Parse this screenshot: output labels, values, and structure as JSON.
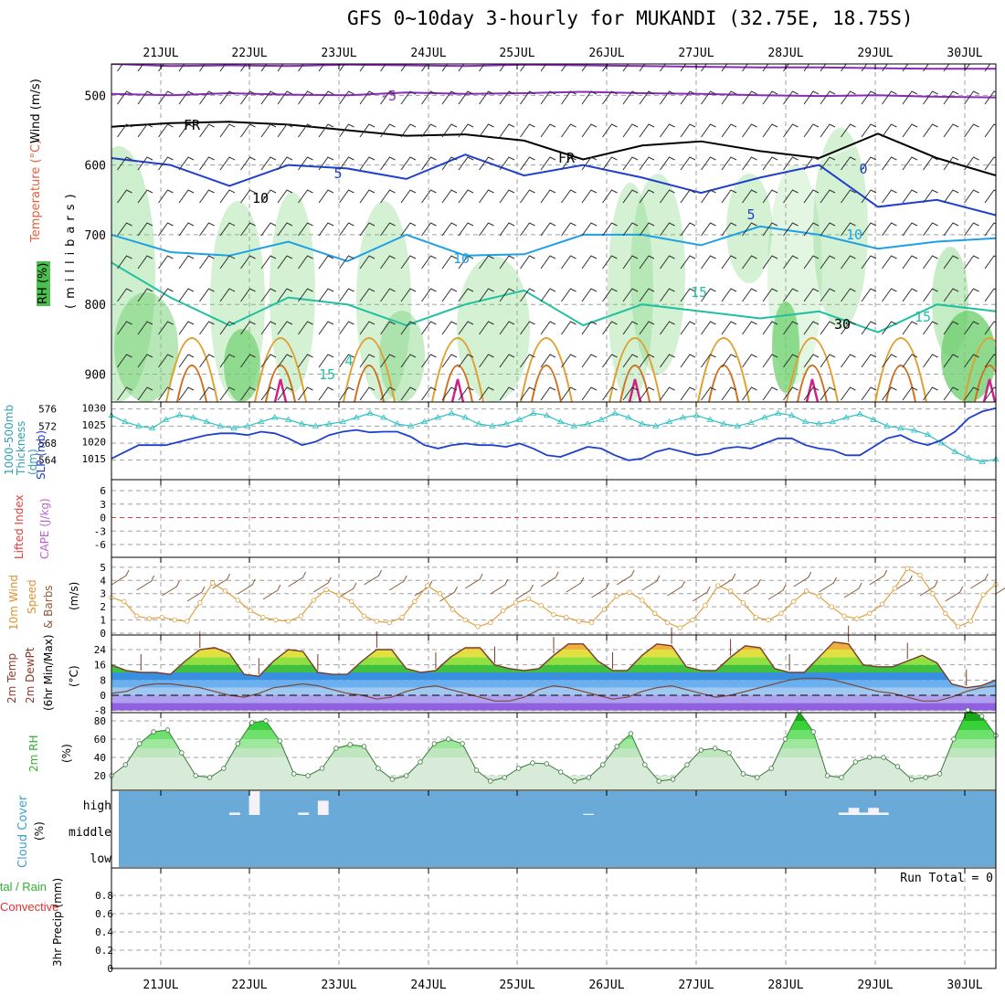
{
  "title": "GFS 0~10day 3-hourly for MUKANDI (32.75E, 18.75S)",
  "colors": {
    "purple": "#8a2bbf",
    "black": "#000000",
    "blue": "#1f3fcc",
    "lightblue": "#1fa0e6",
    "teal": "#20c0a0",
    "orange": "#e0a030",
    "dorange": "#d07020",
    "magenta": "#d0208a",
    "rh_dark": "#70d070",
    "rh_light": "#d8f0d8",
    "thk": "#30c0c0",
    "slp": "#1f3fcc",
    "wind10": "#e0a040",
    "cloud": "#6aaad8",
    "brown": "#8b5a3a"
  },
  "panel_labels": {
    "upper_wind": "Wind (m/s)",
    "upper_temp": "Temperature (°C)",
    "upper_rh": "RH (%)",
    "upper_axis": "(millibars)",
    "thickness": "1000-500mb Thickness (dm)",
    "slp": "SLP (mb)",
    "lifted": "Lifted Index",
    "cape": "CAPE (J/kg)",
    "wind10_a": "10m Wind",
    "wind10_b": "Speed",
    "wind10_c": "& Barbs",
    "wind10_unit": "(m/s)",
    "temp_a": "2m Temp",
    "temp_b": "2m DewPt",
    "temp_c": "(6hr Min/Max)",
    "temp_unit": "(°C)",
    "rh2m": "2m RH",
    "rh2m_unit": "(%)",
    "cloud": "Cloud Cover",
    "cloud_unit": "(%)",
    "precip_a": "Total / Rain",
    "precip_b": "Convective",
    "precip_c": "3hr Precip (mm)"
  },
  "run_total": "Run Total = 0",
  "chart_data": [
    {
      "name": "upper-air",
      "type": "heatmap",
      "x_dates": [
        "21JUL",
        "22JUL",
        "23JUL",
        "24JUL",
        "25JUL",
        "26JUL",
        "27JUL",
        "28JUL",
        "29JUL",
        "30JUL"
      ],
      "y_ticks": [
        500,
        600,
        700,
        800,
        900
      ],
      "contour_labels": [
        "-5",
        "FR",
        "FR",
        "-5",
        "0",
        "-5",
        "10",
        "10",
        "10",
        "15",
        "15",
        "15",
        "4",
        "30",
        "10"
      ],
      "isotherms": [
        {
          "label": "-5",
          "color": "purple",
          "levels": [
            455,
            458,
            457,
            458,
            456,
            457,
            458,
            456,
            457,
            458,
            459,
            460,
            460,
            461,
            462,
            462
          ]
        },
        {
          "label": "-5b",
          "color": "purple",
          "levels": [
            498,
            500,
            497,
            499,
            500,
            496,
            498,
            497,
            495,
            497,
            498,
            500,
            501,
            500,
            502,
            503
          ]
        },
        {
          "label": "FR",
          "color": "black",
          "levels": [
            545,
            540,
            538,
            542,
            550,
            558,
            556,
            565,
            592,
            572,
            566,
            580,
            590,
            555,
            590,
            615
          ]
        },
        {
          "label": "-5",
          "color": "blue",
          "levels": [
            590,
            600,
            630,
            600,
            605,
            620,
            585,
            615,
            600,
            618,
            640,
            618,
            600,
            660,
            650,
            672
          ]
        },
        {
          "label": "10",
          "color": "lightblue",
          "levels": [
            700,
            725,
            730,
            710,
            738,
            700,
            730,
            728,
            700,
            700,
            715,
            688,
            700,
            720,
            710,
            705
          ]
        },
        {
          "label": "15",
          "color": "teal",
          "levels": [
            740,
            790,
            830,
            790,
            800,
            830,
            800,
            780,
            830,
            800,
            810,
            820,
            810,
            840,
            800,
            810
          ]
        }
      ]
    },
    {
      "name": "thickness-slp",
      "type": "line",
      "thickness_ticks": [
        564,
        568,
        572,
        576
      ],
      "slp_ticks": [
        1015,
        1020,
        1025,
        1030
      ],
      "thickness": [
        574.5,
        573,
        572,
        571.5,
        573.5,
        574.6,
        574,
        573,
        572,
        571.5,
        572,
        573,
        574,
        573.5,
        572.5,
        572,
        572.5,
        573,
        574,
        575,
        574,
        572.5,
        572,
        573,
        574,
        575,
        574,
        572.5,
        572,
        572.5,
        573.5,
        575,
        574.5,
        573,
        572,
        572.5,
        573.5,
        575,
        574,
        572.5,
        572,
        573,
        574,
        574.5,
        573.5,
        572.5,
        572,
        572.8,
        574,
        575,
        574.5,
        573,
        572.5,
        573,
        574,
        574.8,
        573.5,
        572,
        571.5,
        571,
        570,
        568,
        566,
        564.5,
        563.6,
        564.2
      ],
      "slp": [
        1015,
        1017,
        1019,
        1019,
        1019,
        1020,
        1021,
        1022,
        1022.5,
        1022.5,
        1022,
        1023,
        1022.5,
        1021,
        1019,
        1020,
        1022,
        1023,
        1023.5,
        1022.8,
        1023,
        1023,
        1021.5,
        1019,
        1018,
        1019,
        1019.5,
        1019,
        1019,
        1018.5,
        1019.5,
        1018,
        1016,
        1015.5,
        1017,
        1018.5,
        1018,
        1016,
        1014.5,
        1015,
        1017,
        1018,
        1017,
        1016,
        1016.5,
        1018,
        1018.5,
        1018,
        1019.5,
        1021,
        1021,
        1019,
        1018,
        1017.5,
        1016,
        1016,
        1018.5,
        1021,
        1022,
        1020,
        1019,
        1020.5,
        1023,
        1027,
        1029,
        1030
      ]
    },
    {
      "name": "lifted-cape",
      "type": "line",
      "y_ticks": [
        "6",
        "3",
        "0",
        "-3",
        "-6"
      ],
      "lifted_index": []
    },
    {
      "name": "wind10m",
      "type": "line",
      "y_ticks": [
        0,
        1,
        2,
        3,
        4,
        5
      ],
      "speed": [
        2.7,
        2.4,
        1.3,
        1.1,
        1.2,
        1.0,
        0.9,
        2.3,
        3.8,
        3.2,
        2.5,
        1.7,
        1.2,
        1.0,
        0.9,
        1.3,
        2.5,
        3.3,
        2.9,
        2.4,
        1.3,
        0.9,
        0.8,
        1.2,
        2.4,
        3.6,
        3.0,
        1.8,
        1.0,
        0.5,
        0.8,
        1.7,
        2.3,
        2.6,
        2.1,
        1.4,
        1.2,
        0.9,
        0.8,
        1.8,
        2.8,
        3.1,
        2.5,
        1.5,
        0.8,
        0.4,
        1.0,
        2.1,
        3.6,
        3.2,
        2.3,
        1.2,
        1.0,
        1.5,
        2.4,
        3.2,
        2.8,
        2.0,
        1.3,
        1.1,
        1.5,
        2.2,
        3.4,
        4.9,
        4.4,
        3.0,
        1.5,
        0.5,
        0.9,
        2.9,
        3.7
      ]
    },
    {
      "name": "temp2m",
      "type": "area",
      "y_ticks": [
        "24",
        "16",
        "8",
        "0",
        "-8"
      ],
      "temp": [
        16,
        13,
        12,
        12,
        11,
        18,
        24,
        25,
        22,
        11,
        10,
        18,
        24,
        23,
        12,
        11,
        11,
        18,
        24,
        24,
        14,
        12,
        13,
        20,
        25,
        25,
        16,
        14,
        13,
        14,
        21,
        27,
        27,
        18,
        13,
        13,
        21,
        27,
        26,
        15,
        13,
        13,
        20,
        26,
        25,
        14,
        12,
        12,
        20,
        28,
        27,
        16,
        15,
        15,
        18,
        21,
        17,
        6,
        4,
        5,
        8
      ],
      "dewpoint": [
        1,
        2,
        5,
        6,
        6,
        5,
        4,
        2,
        0,
        -1,
        1,
        4,
        5,
        6,
        5,
        3,
        1,
        0,
        -2,
        -1,
        2,
        4,
        5,
        3,
        1,
        -1,
        -3,
        -3,
        -1,
        3,
        5,
        4,
        2,
        0,
        -2,
        -1,
        2,
        4,
        5,
        3,
        1,
        -1,
        0,
        2,
        4,
        6,
        8,
        9,
        9,
        8,
        6,
        4,
        2,
        1,
        -1,
        -3,
        -3,
        -1,
        2,
        4,
        5
      ]
    },
    {
      "name": "rh2m",
      "type": "area",
      "y_ticks": [
        20,
        40,
        60,
        80
      ],
      "rh": [
        20,
        32,
        55,
        68,
        70,
        45,
        20,
        18,
        28,
        55,
        78,
        80,
        58,
        22,
        20,
        28,
        50,
        54,
        52,
        28,
        16,
        20,
        35,
        55,
        60,
        55,
        26,
        14,
        18,
        28,
        34,
        33,
        24,
        14,
        18,
        32,
        52,
        66,
        32,
        14,
        16,
        32,
        48,
        50,
        45,
        22,
        18,
        28,
        60,
        90,
        68,
        20,
        18,
        35,
        40,
        40,
        30,
        16,
        18,
        22,
        60,
        92,
        85,
        64
      ]
    },
    {
      "name": "cloud",
      "type": "bar",
      "y_ticks": [
        "high",
        "middle",
        "low"
      ],
      "high_cover_pct": [
        0,
        0,
        0,
        0,
        0,
        0,
        0,
        0,
        0,
        0,
        0,
        0,
        10,
        0,
        100,
        0,
        0,
        0,
        0,
        10,
        0,
        60,
        0,
        0,
        0,
        0,
        0,
        0,
        0,
        0,
        0,
        0,
        0,
        0,
        0,
        0,
        0,
        0,
        0,
        0,
        0,
        0,
        0,
        0,
        0,
        0,
        0,
        0,
        5,
        0,
        0,
        0,
        0,
        0,
        0,
        0,
        0,
        0,
        0,
        0,
        0,
        0,
        0,
        0,
        0,
        0,
        0,
        0,
        0,
        0,
        0,
        0,
        0,
        0,
        10,
        30,
        10,
        30,
        10,
        0,
        0,
        0,
        0,
        0,
        0,
        0,
        0,
        0,
        0,
        0
      ]
    },
    {
      "name": "precip",
      "type": "bar",
      "y_ticks": [
        "0",
        "0.2",
        "0.4",
        "0.6",
        "0.8"
      ],
      "total": []
    }
  ]
}
